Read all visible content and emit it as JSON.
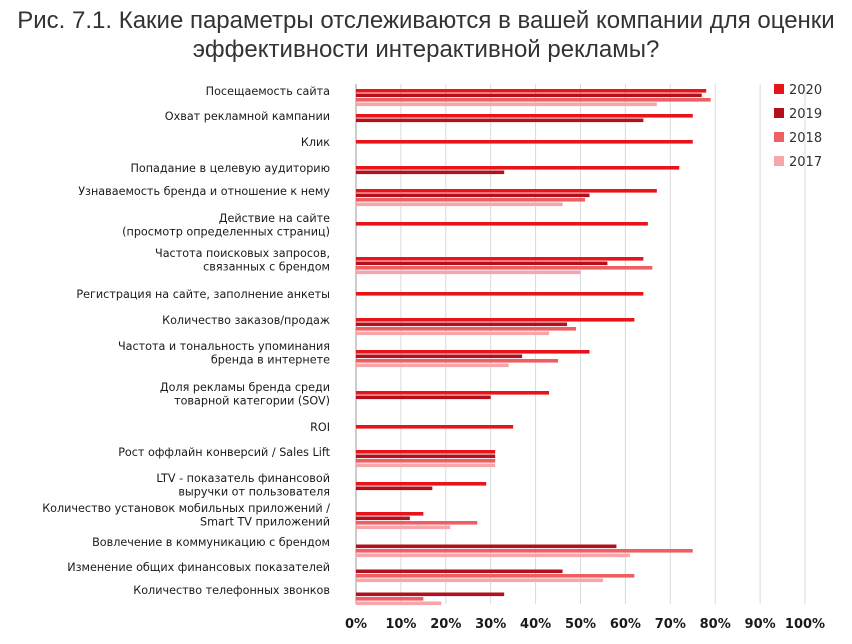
{
  "title": "Рис. 7.1. Какие параметры отслеживаются в вашей компании для оценки эффективности интерактивной рекламы?",
  "chart_data": {
    "type": "bar",
    "orientation": "horizontal",
    "title": "Рис. 7.1. Какие параметры отслеживаются в вашей компании для оценки эффективности интерактивной рекламы?",
    "xlabel": "",
    "ylabel": "",
    "xlim": [
      0,
      100
    ],
    "x_unit": "%",
    "grid": "vertical",
    "legend_position": "top-right",
    "ticks": [
      "0%",
      "10%",
      "20%",
      "30%",
      "40%",
      "50%",
      "60%",
      "70%",
      "80%",
      "90%",
      "100%"
    ],
    "categories": [
      [
        "Посещаемость сайта"
      ],
      [
        "Охват рекламной кампании"
      ],
      [
        "Клик"
      ],
      [
        "Попадание в целевую аудиторию"
      ],
      [
        "Узнаваемость бренда и отношение к нему"
      ],
      [
        "Действие на сайте",
        "(просмотр определенных страниц)"
      ],
      [
        "Частота поисковых запросов,",
        "связанных с брендом"
      ],
      [
        "Регистрация на сайте, заполнение анкеты"
      ],
      [
        "Количество заказов/продаж"
      ],
      [
        "Частота и тональность упоминания",
        "бренда в интернете"
      ],
      [
        "Доля рекламы бренда среди",
        "товарной категории (SOV)"
      ],
      [
        "ROI"
      ],
      [
        "Рост оффлайн конверсий / Sales Lift"
      ],
      [
        "LTV - показатель финансовой",
        "выручки от пользователя"
      ],
      [
        "Количество установок мобильных приложений /",
        "Smart TV приложений"
      ],
      [
        "Вовлечение в коммуникацию с брендом"
      ],
      [
        "Изменение общих финансовых показателей"
      ],
      [
        "Количество телефонных звонков"
      ]
    ],
    "series": [
      {
        "name": "2020",
        "color": "#e8141a",
        "values": [
          78,
          75,
          75,
          72,
          67,
          65,
          64,
          64,
          62,
          52,
          43,
          35,
          31,
          29,
          15,
          null,
          null,
          null
        ]
      },
      {
        "name": "2019",
        "color": "#b3101e",
        "values": [
          77,
          64,
          null,
          33,
          52,
          null,
          56,
          null,
          47,
          37,
          30,
          null,
          31,
          17,
          12,
          58,
          46,
          33
        ]
      },
      {
        "name": "2018",
        "color": "#ed5f63",
        "values": [
          79,
          null,
          null,
          null,
          51,
          null,
          66,
          null,
          49,
          45,
          null,
          null,
          31,
          null,
          27,
          75,
          62,
          15
        ]
      },
      {
        "name": "2017",
        "color": "#f6a5a8",
        "values": [
          67,
          null,
          null,
          null,
          46,
          null,
          50,
          null,
          43,
          34,
          null,
          null,
          31,
          null,
          21,
          61,
          55,
          19
        ]
      }
    ]
  }
}
